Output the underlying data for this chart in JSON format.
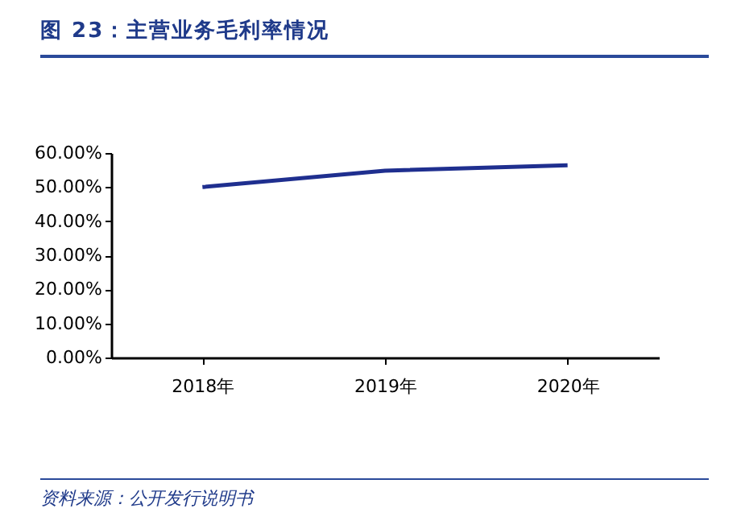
{
  "chart_data": {
    "type": "line",
    "title": "图 23：主营业务毛利率情况",
    "categories": [
      "2018年",
      "2019年",
      "2020年"
    ],
    "series": [
      {
        "color": "#1f2f8f",
        "values": [
          50.0,
          54.8,
          56.4
        ]
      }
    ],
    "ylim": [
      0,
      60
    ],
    "yticks": [
      {
        "value": 0,
        "label": "0.00%"
      },
      {
        "value": 10,
        "label": "10.00%"
      },
      {
        "value": 20,
        "label": "20.00%"
      },
      {
        "value": 30,
        "label": "30.00%"
      },
      {
        "value": 40,
        "label": "40.00%"
      },
      {
        "value": 50,
        "label": "50.00%"
      },
      {
        "value": 60,
        "label": "60.00%"
      }
    ],
    "grid": false,
    "legend": false,
    "marker": "none",
    "line_style": "solid",
    "annotations": [
      "资料来源：公开发行说明书"
    ]
  }
}
